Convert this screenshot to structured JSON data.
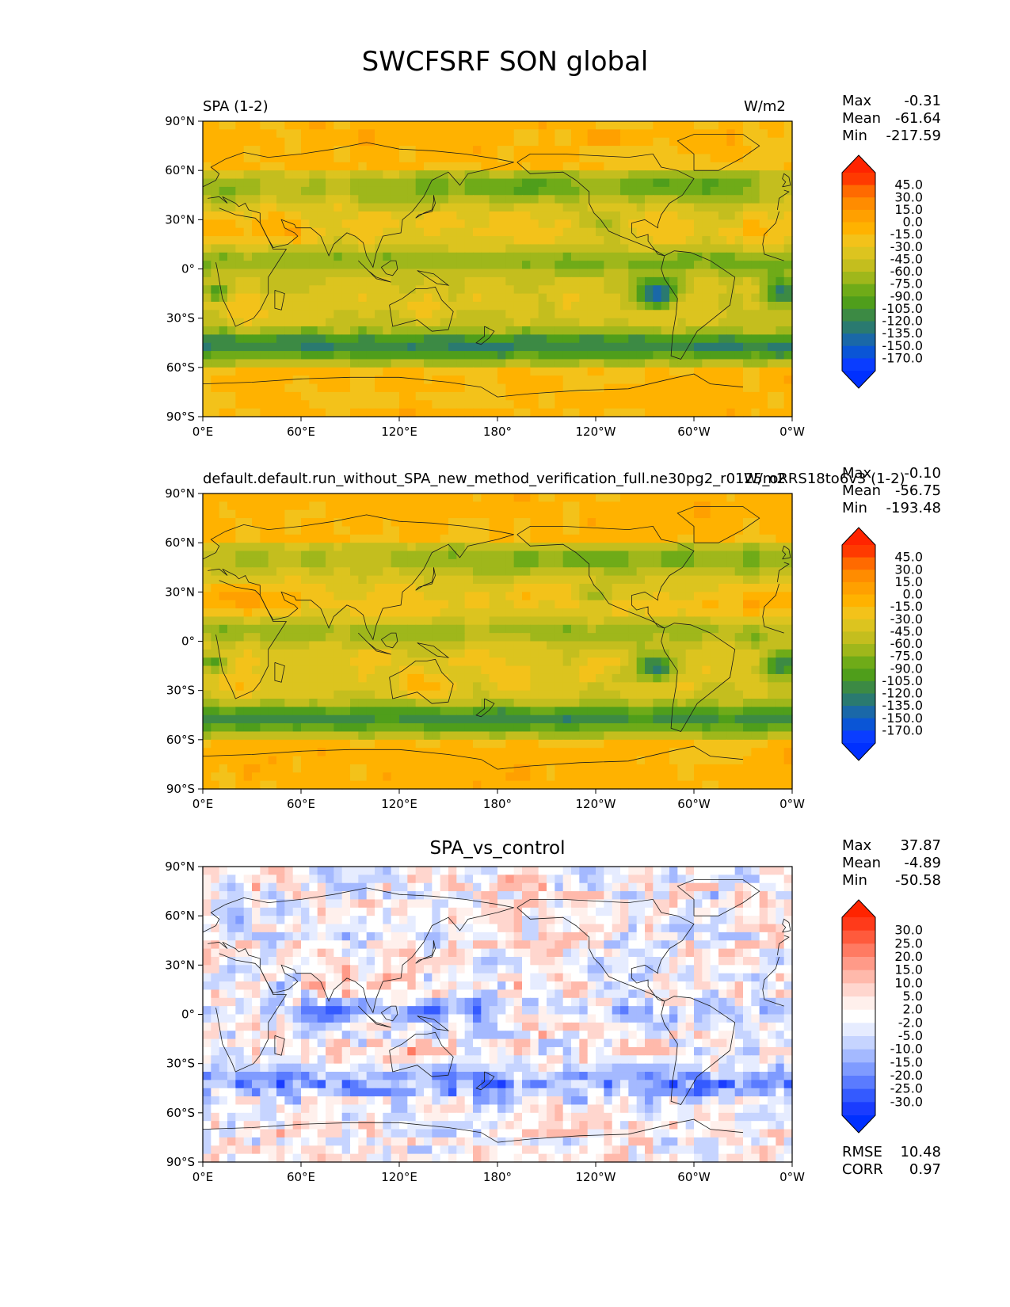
{
  "figure": {
    "title": "SWCFSRF SON global"
  },
  "panels": [
    {
      "left_title": "SPA (1-2)",
      "center_title": "",
      "units": "W/m2",
      "stats": {
        "max": "-0.31",
        "mean": "-61.64",
        "min": "-217.59"
      },
      "colorbar": {
        "levels": [
          "45.0",
          "30.0",
          "15.0",
          "0.0",
          "-15.0",
          "-30.0",
          "-45.0",
          "-60.0",
          "-75.0",
          "-90.0",
          "-105.0",
          "-120.0",
          "-135.0",
          "-150.0",
          "-170.0"
        ],
        "colors": [
          "#ff3a00",
          "#ff6a00",
          "#ff8c00",
          "#ffa000",
          "#ffb200",
          "#f3c21a",
          "#dcc41f",
          "#c4be1e",
          "#9fb71b",
          "#6fab18",
          "#4f9e1b",
          "#3c8a44",
          "#2a7a70",
          "#1a68a8",
          "#0a55d6",
          "#0a3dff"
        ],
        "extend_top_color": "#ff2400",
        "extend_bottom_color": "#0030ff"
      },
      "map_style": "abs"
    },
    {
      "left_title": "default.default.run_without_SPA_new_method_verification_full.ne30pg2_r0125_oRRS18to6v3 (1-2)",
      "center_title": "",
      "units": "W/m2",
      "stats": {
        "max": "-0.10",
        "mean": "-56.75",
        "min": "-193.48"
      },
      "colorbar": {
        "levels": [
          "45.0",
          "30.0",
          "15.0",
          "0.0",
          "-15.0",
          "-30.0",
          "-45.0",
          "-60.0",
          "-75.0",
          "-90.0",
          "-105.0",
          "-120.0",
          "-135.0",
          "-150.0",
          "-170.0"
        ],
        "colors": [
          "#ff3a00",
          "#ff6a00",
          "#ff8c00",
          "#ffa000",
          "#ffb200",
          "#f3c21a",
          "#dcc41f",
          "#c4be1e",
          "#9fb71b",
          "#6fab18",
          "#4f9e1b",
          "#3c8a44",
          "#2a7a70",
          "#1a68a8",
          "#0a55d6",
          "#0a3dff"
        ],
        "extend_top_color": "#ff2400",
        "extend_bottom_color": "#0030ff"
      },
      "map_style": "abs"
    },
    {
      "left_title": "",
      "center_title": "SPA_vs_control",
      "units": "",
      "stats": {
        "max": "37.87",
        "mean": "-4.89",
        "min": "-50.58"
      },
      "extra_stats": {
        "rmse": "10.48",
        "corr": "0.97"
      },
      "colorbar": {
        "levels": [
          "30.0",
          "25.0",
          "20.0",
          "15.0",
          "10.0",
          "5.0",
          "2.0",
          "-2.0",
          "-5.0",
          "-10.0",
          "-15.0",
          "-20.0",
          "-25.0",
          "-30.0"
        ],
        "colors": [
          "#ff3a1a",
          "#ff5a3c",
          "#ff7a62",
          "#ff9a88",
          "#ffb9ab",
          "#ffd6ce",
          "#fff0ec",
          "#ffffff",
          "#e6ecff",
          "#c6d4ff",
          "#a4b9ff",
          "#7f9bff",
          "#5a7bff",
          "#345aff",
          "#1a3cff"
        ],
        "extend_top_color": "#ff2400",
        "extend_bottom_color": "#0030ff"
      },
      "map_style": "diff"
    }
  ],
  "stat_labels": {
    "max": "Max",
    "mean": "Mean",
    "min": "Min",
    "rmse": "RMSE",
    "corr": "CORR"
  },
  "axes": {
    "xticks": [
      "0°E",
      "60°E",
      "120°E",
      "180°",
      "120°W",
      "60°W",
      "0°W"
    ],
    "yticks": [
      "90°N",
      "60°N",
      "30°N",
      "0°",
      "30°S",
      "60°S",
      "90°S"
    ]
  },
  "chart_data": [
    {
      "type": "heatmap",
      "title": "SPA (1-2)",
      "units": "W/m2",
      "xlim": [
        0,
        360
      ],
      "ylim": [
        -90,
        90
      ],
      "x_tick_labels": [
        "0°E",
        "60°E",
        "120°E",
        "180°",
        "120°W",
        "60°W",
        "0°W"
      ],
      "y_tick_labels": [
        "90°N",
        "60°N",
        "30°N",
        "0°",
        "30°S",
        "60°S",
        "90°S"
      ],
      "max": -0.31,
      "mean": -61.64,
      "min": -217.59,
      "colorbar_levels": [
        45.0,
        30.0,
        15.0,
        0.0,
        -15.0,
        -30.0,
        -45.0,
        -60.0,
        -75.0,
        -90.0,
        -105.0,
        -120.0,
        -135.0,
        -150.0,
        -170.0
      ]
    },
    {
      "type": "heatmap",
      "title": "default.default.run_without_SPA_new_method_verification_full.ne30pg2_r0125_oRRS18to6v3 (1-2)",
      "units": "W/m2",
      "xlim": [
        0,
        360
      ],
      "ylim": [
        -90,
        90
      ],
      "x_tick_labels": [
        "0°E",
        "60°E",
        "120°E",
        "180°",
        "120°W",
        "60°W",
        "0°W"
      ],
      "y_tick_labels": [
        "90°N",
        "60°N",
        "30°N",
        "0°",
        "30°S",
        "60°S",
        "90°S"
      ],
      "max": -0.1,
      "mean": -56.75,
      "min": -193.48,
      "colorbar_levels": [
        45.0,
        30.0,
        15.0,
        0.0,
        -15.0,
        -30.0,
        -45.0,
        -60.0,
        -75.0,
        -90.0,
        -105.0,
        -120.0,
        -135.0,
        -150.0,
        -170.0
      ]
    },
    {
      "type": "heatmap",
      "title": "SPA_vs_control",
      "xlim": [
        0,
        360
      ],
      "ylim": [
        -90,
        90
      ],
      "x_tick_labels": [
        "0°E",
        "60°E",
        "120°E",
        "180°",
        "120°W",
        "60°W",
        "0°W"
      ],
      "y_tick_labels": [
        "90°N",
        "60°N",
        "30°N",
        "0°",
        "30°S",
        "60°S",
        "90°S"
      ],
      "max": 37.87,
      "mean": -4.89,
      "min": -50.58,
      "rmse": 10.48,
      "corr": 0.97,
      "colorbar_levels": [
        30.0,
        25.0,
        20.0,
        15.0,
        10.0,
        5.0,
        2.0,
        -2.0,
        -5.0,
        -10.0,
        -15.0,
        -20.0,
        -25.0,
        -30.0
      ]
    }
  ]
}
